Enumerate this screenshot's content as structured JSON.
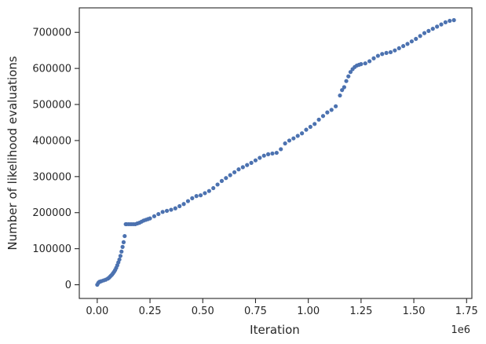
{
  "chart_data": {
    "type": "scatter",
    "title": "",
    "xlabel": "Iteration",
    "ylabel": "Number of likelihood evaluations",
    "x_offset_label": "1e6",
    "xlim": [
      -0.085,
      1.775
    ],
    "ylim": [
      -38000,
      768000
    ],
    "x_ticks": [
      0.0,
      0.25,
      0.5,
      0.75,
      1.0,
      1.25,
      1.5,
      1.75
    ],
    "x_tick_labels": [
      "0.00",
      "0.25",
      "0.50",
      "0.75",
      "1.00",
      "1.25",
      "1.50",
      "1.75"
    ],
    "y_ticks": [
      0,
      100000,
      200000,
      300000,
      400000,
      500000,
      600000,
      700000
    ],
    "y_tick_labels": [
      "0",
      "100000",
      "200000",
      "300000",
      "400000",
      "500000",
      "600000",
      "700000"
    ],
    "grid": false,
    "legend": "none",
    "marker_color": "#4c72b0",
    "series": [
      {
        "x": [
          0.0,
          0.005,
          0.01,
          0.015,
          0.02,
          0.03,
          0.04,
          0.05,
          0.055,
          0.06,
          0.065,
          0.07,
          0.075,
          0.08,
          0.085,
          0.09,
          0.095,
          0.1,
          0.105,
          0.11,
          0.115,
          0.12,
          0.125,
          0.13,
          0.135,
          0.14,
          0.15,
          0.16,
          0.17,
          0.18,
          0.19,
          0.2,
          0.21,
          0.22,
          0.23,
          0.24,
          0.25,
          0.27,
          0.29,
          0.31,
          0.33,
          0.35,
          0.37,
          0.39,
          0.41,
          0.43,
          0.45,
          0.47,
          0.49,
          0.51,
          0.53,
          0.55,
          0.57,
          0.59,
          0.61,
          0.63,
          0.65,
          0.67,
          0.69,
          0.71,
          0.73,
          0.75,
          0.77,
          0.79,
          0.81,
          0.83,
          0.85,
          0.87,
          0.89,
          0.91,
          0.93,
          0.95,
          0.97,
          0.99,
          1.01,
          1.03,
          1.05,
          1.07,
          1.09,
          1.11,
          1.13,
          1.15,
          1.16,
          1.17,
          1.18,
          1.19,
          1.2,
          1.21,
          1.22,
          1.23,
          1.24,
          1.25,
          1.27,
          1.29,
          1.31,
          1.33,
          1.35,
          1.37,
          1.39,
          1.41,
          1.43,
          1.45,
          1.47,
          1.49,
          1.51,
          1.53,
          1.55,
          1.57,
          1.59,
          1.61,
          1.63,
          1.65,
          1.67,
          1.69
        ],
        "y": [
          0,
          5000,
          8000,
          9000,
          10000,
          12000,
          14000,
          17000,
          19000,
          22000,
          25000,
          28000,
          32000,
          36000,
          41000,
          47000,
          54000,
          62000,
          70000,
          80000,
          92000,
          105000,
          118000,
          135000,
          168000,
          168000,
          168000,
          168000,
          168000,
          168000,
          170000,
          172000,
          175000,
          178000,
          180000,
          182000,
          184000,
          190000,
          196000,
          202000,
          205000,
          208000,
          212000,
          218000,
          224000,
          232000,
          240000,
          246000,
          248000,
          254000,
          260000,
          268000,
          278000,
          288000,
          296000,
          304000,
          312000,
          320000,
          326000,
          332000,
          338000,
          345000,
          352000,
          358000,
          362000,
          364000,
          366000,
          376000,
          392000,
          400000,
          406000,
          413000,
          420000,
          430000,
          438000,
          446000,
          458000,
          468000,
          478000,
          485000,
          495000,
          525000,
          540000,
          548000,
          565000,
          578000,
          590000,
          598000,
          604000,
          608000,
          610000,
          612000,
          614000,
          620000,
          628000,
          635000,
          640000,
          643000,
          645000,
          650000,
          656000,
          662000,
          668000,
          675000,
          682000,
          690000,
          698000,
          704000,
          710000,
          716000,
          722000,
          728000,
          732000,
          734000
        ]
      }
    ]
  }
}
